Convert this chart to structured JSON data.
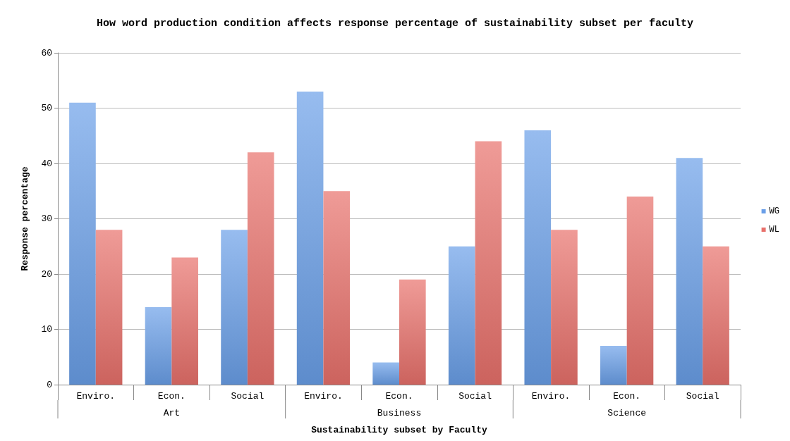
{
  "chart_data": {
    "type": "bar",
    "title": "How word production condition affects response percentage of sustainability subset per faculty",
    "xlabel": "Sustainability subset by Faculty",
    "ylabel": "Response percentage",
    "categories": [
      "Enviro.",
      "Econ.",
      "Social",
      "Enviro.",
      "Econ.",
      "Social",
      "Enviro.",
      "Econ.",
      "Social"
    ],
    "series": [
      {
        "name": "WG",
        "color": "#6a9fe8",
        "values": [
          51,
          14,
          28,
          53,
          4,
          25,
          46,
          7,
          41
        ]
      },
      {
        "name": "WL",
        "color": "#e8706b",
        "values": [
          28,
          23,
          42,
          35,
          19,
          44,
          28,
          34,
          25
        ]
      }
    ],
    "annotations": [
      "Art",
      "Business",
      "Science"
    ],
    "ylim": [
      0,
      60
    ],
    "yticks": [
      0,
      10,
      20,
      30,
      40,
      50,
      60
    ],
    "grid": "y",
    "legend": "right"
  }
}
